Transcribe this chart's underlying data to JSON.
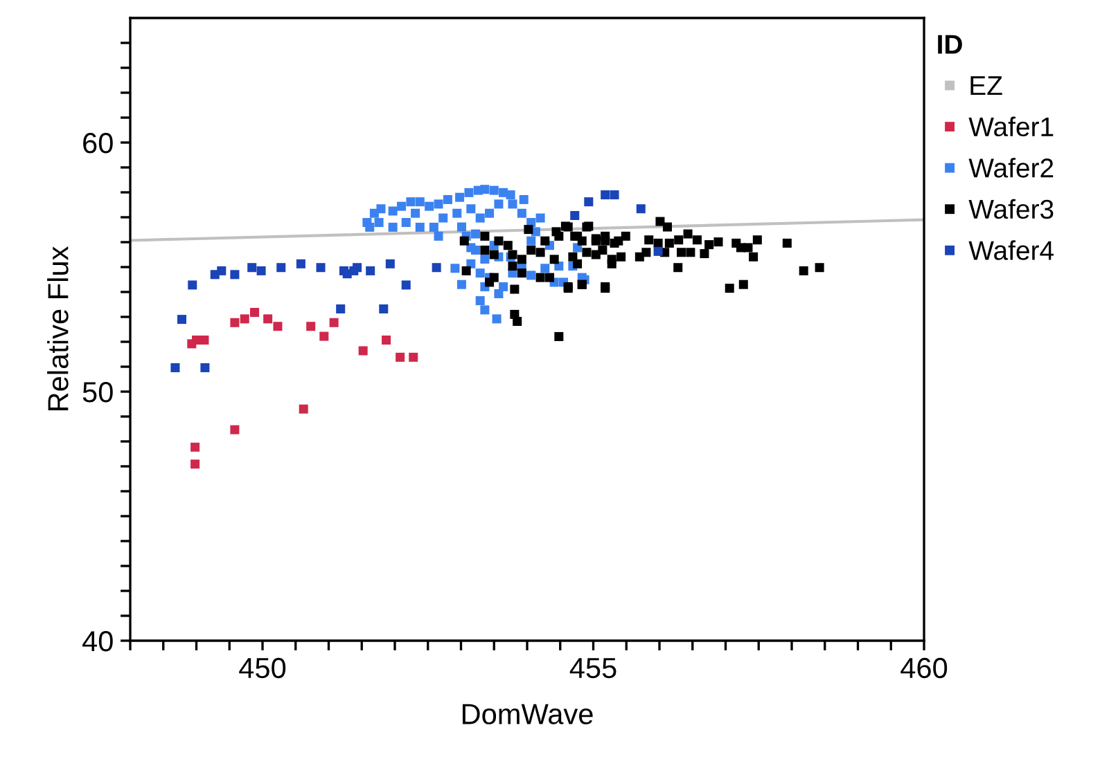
{
  "chart_data": {
    "type": "scatter",
    "xlabel": "DomWave",
    "ylabel": "Relative Flux",
    "legend_title": "ID",
    "legend": "right",
    "marker": "square",
    "grid": false,
    "xlim": [
      448,
      460
    ],
    "ylim": [
      40,
      65
    ],
    "xticks": [
      {
        "value": 448,
        "label": null
      },
      {
        "value": 448.5,
        "label": null
      },
      {
        "value": 449,
        "label": null
      },
      {
        "value": 449.5,
        "label": null
      },
      450,
      {
        "value": 450.5,
        "label": null
      },
      {
        "value": 451,
        "label": null
      },
      {
        "value": 451.5,
        "label": null
      },
      {
        "value": 452,
        "label": null
      },
      {
        "value": 452.5,
        "label": null
      },
      {
        "value": 453,
        "label": null
      },
      {
        "value": 453.5,
        "label": null
      },
      {
        "value": 454,
        "label": null
      },
      {
        "value": 454.5,
        "label": null
      },
      455,
      {
        "value": 455.5,
        "label": null
      },
      {
        "value": 456,
        "label": null
      },
      {
        "value": 456.5,
        "label": null
      },
      {
        "value": 457,
        "label": null
      },
      {
        "value": 457.5,
        "label": null
      },
      {
        "value": 458,
        "label": null
      },
      {
        "value": 458.5,
        "label": null
      },
      {
        "value": 459,
        "label": null
      },
      {
        "value": 459.5,
        "label": null
      },
      460
    ],
    "yticks": [
      40,
      {
        "value": 41,
        "label": null
      },
      {
        "value": 42,
        "label": null
      },
      {
        "value": 43,
        "label": null
      },
      {
        "value": 44,
        "label": null
      },
      {
        "value": 45,
        "label": null
      },
      {
        "value": 46,
        "label": null
      },
      {
        "value": 47,
        "label": null
      },
      {
        "value": 48,
        "label": null
      },
      {
        "value": 49,
        "label": null
      },
      50,
      {
        "value": 51,
        "label": null
      },
      {
        "value": 52,
        "label": null
      },
      {
        "value": 53,
        "label": null
      },
      {
        "value": 54,
        "label": null
      },
      {
        "value": 55,
        "label": null
      },
      {
        "value": 56,
        "label": null
      },
      {
        "value": 57,
        "label": null
      },
      {
        "value": 58,
        "label": null
      },
      {
        "value": 59,
        "label": null
      },
      60,
      {
        "value": 61,
        "label": null
      },
      {
        "value": 62,
        "label": null
      },
      {
        "value": 63,
        "label": null
      },
      {
        "value": 64,
        "label": null
      }
    ],
    "series": [
      {
        "name": "EZ",
        "type": "line",
        "marker": "none",
        "color": "#c0c0c0",
        "x": [
          448,
          460
        ],
        "values": [
          56.07,
          56.9
        ]
      },
      {
        "name": "Wafer1",
        "color": "#d0284c",
        "x": [
          448.93,
          449.0,
          449.12,
          449.58,
          449.73,
          449.88,
          450.08,
          450.23,
          450.73,
          450.93,
          451.08,
          451.52,
          451.87,
          452.08,
          452.28,
          450.62,
          449.58,
          448.98,
          448.98
        ],
        "values": [
          51.92,
          52.07,
          52.07,
          52.77,
          52.92,
          53.18,
          52.92,
          52.62,
          52.62,
          52.22,
          52.77,
          51.64,
          52.07,
          51.38,
          51.38,
          49.3,
          48.47,
          47.77,
          47.09
        ]
      },
      {
        "name": "Wafer2",
        "color": "#3b82f0",
        "x": [
          451.58,
          451.69,
          451.79,
          451.97,
          452.1,
          452.24,
          452.38,
          452.52,
          452.66,
          452.8,
          452.98,
          453.12,
          453.26,
          453.36,
          453.5,
          453.64,
          453.75,
          453.95,
          453.78,
          453.92,
          454.06,
          454.2,
          453.57,
          453.43,
          453.29,
          453.15,
          452.94,
          452.73,
          452.59,
          452.38,
          452.17,
          451.97,
          451.76,
          451.62,
          452.31,
          452.66,
          453.01,
          453.22,
          453.15,
          453.29,
          453.36,
          453.29,
          453.36,
          453.54,
          453.08,
          453.22,
          453.5,
          453.57,
          453.75,
          453.78,
          453.64,
          453.57,
          453.43,
          453.01,
          453.92,
          454.06,
          454.27,
          454.06,
          454.34,
          454.13,
          454.48,
          454.69,
          454.76,
          454.83,
          454.41,
          454.55,
          453.15,
          453.36,
          452.91,
          454.87
        ],
        "values": [
          56.79,
          57.16,
          57.34,
          57.25,
          57.44,
          57.62,
          57.62,
          57.44,
          57.53,
          57.71,
          57.8,
          57.99,
          58.08,
          58.12,
          58.08,
          57.99,
          57.9,
          57.71,
          57.53,
          57.16,
          56.79,
          56.97,
          57.53,
          57.16,
          56.97,
          57.34,
          57.16,
          56.97,
          56.6,
          56.6,
          56.79,
          56.6,
          56.79,
          56.6,
          57.16,
          56.24,
          56.61,
          55.68,
          55.13,
          54.76,
          54.21,
          53.65,
          53.28,
          52.92,
          56.24,
          56.33,
          55.87,
          55.41,
          55.41,
          54.76,
          54.21,
          53.93,
          54.58,
          54.3,
          55.04,
          54.67,
          54.95,
          56.05,
          55.87,
          56.42,
          55.04,
          55.04,
          55.78,
          54.58,
          54.39,
          54.39,
          55.78,
          55.32,
          54.95,
          54.49
        ]
      },
      {
        "name": "Wafer3",
        "color": "#000000",
        "x": [
          453.05,
          453.36,
          453.57,
          453.71,
          453.36,
          453.5,
          453.78,
          453.92,
          454.06,
          454.2,
          454.27,
          454.48,
          454.62,
          454.76,
          454.9,
          455.04,
          455.18,
          455.38,
          455.28,
          455.04,
          454.76,
          454.62,
          454.83,
          455.18,
          454.34,
          454.2,
          453.92,
          453.5,
          453.43,
          453.78,
          453.81,
          453.81,
          453.85,
          454.48,
          453.08,
          454.41,
          454.02,
          454.44,
          454.58,
          454.93,
          456.01,
          456.12,
          454.72,
          454.83,
          455.04,
          455.18,
          455.32,
          455.49,
          455.84,
          455.98,
          456.15,
          456.29,
          456.43,
          456.57,
          456.75,
          456.89,
          457.16,
          457.34,
          457.48,
          457.93,
          454.69,
          454.9,
          455.14,
          455.28,
          455.42,
          455.7,
          455.8,
          456.08,
          456.33,
          456.47,
          456.68,
          457.23,
          457.42,
          456.28,
          458.18,
          458.42,
          457.06,
          457.27,
          455.18,
          454.62,
          454.83
        ],
        "values": [
          56.05,
          56.24,
          56.05,
          55.87,
          55.68,
          55.5,
          55.5,
          55.31,
          55.68,
          55.59,
          56.05,
          56.24,
          56.61,
          56.24,
          56.61,
          56.05,
          56.24,
          56.05,
          55.31,
          55.5,
          55.13,
          54.21,
          54.3,
          54.21,
          54.58,
          54.58,
          54.76,
          54.58,
          54.39,
          55.04,
          54.11,
          53.1,
          52.82,
          52.21,
          54.85,
          55.31,
          56.51,
          56.42,
          56.64,
          56.64,
          56.83,
          56.61,
          56.24,
          56.05,
          56.14,
          56.05,
          55.96,
          56.24,
          56.09,
          55.96,
          55.96,
          56.09,
          56.33,
          56.09,
          55.9,
          56.01,
          55.96,
          55.78,
          56.09,
          55.96,
          55.41,
          55.59,
          55.68,
          55.13,
          55.41,
          55.41,
          55.59,
          55.59,
          55.59,
          55.59,
          55.54,
          55.78,
          55.41,
          54.98,
          54.85,
          54.98,
          54.15,
          54.3,
          54.15,
          54.15,
          54.3
        ]
      },
      {
        "name": "Wafer4",
        "color": "#1a44b8",
        "x": [
          448.94,
          448.78,
          448.68,
          449.13,
          449.28,
          449.38,
          449.58,
          449.84,
          449.98,
          450.28,
          450.58,
          450.88,
          451.23,
          451.28,
          451.38,
          451.43,
          451.63,
          451.93,
          451.18,
          451.83,
          452.17,
          452.63,
          454.93,
          454.72,
          455.18,
          455.32,
          455.72,
          455.98
        ],
        "values": [
          54.28,
          52.9,
          50.96,
          50.96,
          54.7,
          54.85,
          54.7,
          54.98,
          54.85,
          54.98,
          55.13,
          54.98,
          54.85,
          54.73,
          54.85,
          54.98,
          54.85,
          55.13,
          53.32,
          53.32,
          54.28,
          54.98,
          57.62,
          57.07,
          57.9,
          57.9,
          57.34,
          55.63
        ]
      }
    ]
  }
}
